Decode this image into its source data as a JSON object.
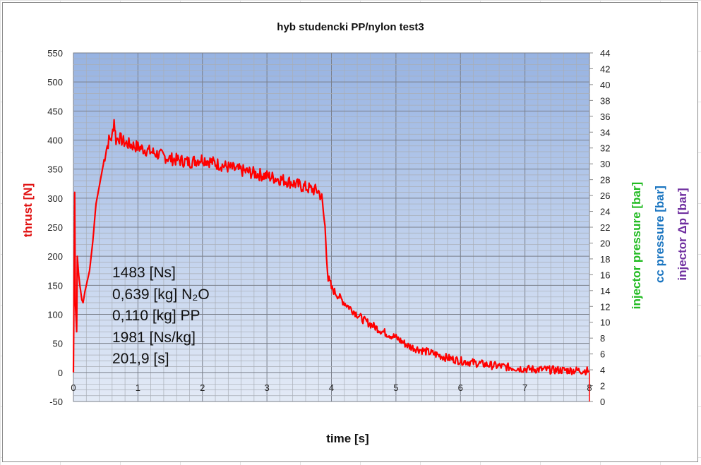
{
  "chart_data": {
    "type": "line",
    "title": "hyb studencki  PP/nylon  test3",
    "xlabel": "time [s]",
    "ylabel": "thrust  [N]",
    "y2labels": [
      "injector pressure [bar]",
      "cc pressure [bar]",
      "injector Δp [bar]"
    ],
    "y2label_colors": [
      "#22bb22",
      "#1a75c0",
      "#7030a0"
    ],
    "xlim": [
      0,
      8
    ],
    "ylim": [
      -50,
      550
    ],
    "y2lim": [
      0,
      44
    ],
    "x_ticks": [
      "0",
      "1",
      "2",
      "3",
      "4",
      "5",
      "6",
      "7",
      "8"
    ],
    "y_ticks": [
      "550",
      "500",
      "450",
      "400",
      "350",
      "300",
      "250",
      "200",
      "150",
      "100",
      "50",
      "0",
      "-50"
    ],
    "y2_ticks": [
      "44",
      "42",
      "40",
      "38",
      "36",
      "34",
      "32",
      "30",
      "28",
      "26",
      "24",
      "22",
      "20",
      "18",
      "16",
      "14",
      "12",
      "10",
      "8",
      "6",
      "4",
      "2",
      "0"
    ],
    "grid": true,
    "series": [
      {
        "name": "thrust [N]",
        "color": "#ff0000",
        "x": [
          0,
          0.02,
          0.03,
          0.05,
          0.06,
          0.08,
          0.1,
          0.13,
          0.15,
          0.18,
          0.2,
          0.25,
          0.3,
          0.35,
          0.4,
          0.45,
          0.5,
          0.55,
          0.6,
          0.63,
          0.66,
          0.7,
          0.8,
          1.0,
          1.2,
          1.5,
          1.8,
          2.0,
          2.2,
          2.5,
          2.8,
          3.0,
          3.3,
          3.5,
          3.7,
          3.8,
          3.85,
          3.9,
          3.95,
          4.0,
          4.2,
          4.5,
          4.8,
          5.0,
          5.2,
          5.5,
          5.8,
          6.0,
          6.5,
          7.0,
          7.5,
          8.0
        ],
        "values": [
          0,
          310,
          120,
          70,
          200,
          170,
          150,
          125,
          120,
          140,
          150,
          175,
          225,
          290,
          320,
          350,
          380,
          400,
          405,
          435,
          400,
          405,
          395,
          388,
          380,
          368,
          362,
          368,
          360,
          350,
          343,
          338,
          330,
          322,
          315,
          312,
          300,
          250,
          160,
          145,
          120,
          90,
          70,
          60,
          45,
          35,
          25,
          20,
          12,
          6,
          4,
          3
        ]
      }
    ],
    "annotations": [
      "1483  [Ns]",
      "0,639 [kg] N₂O",
      "0,110 [kg] PP",
      "1981  [Ns/kg]",
      "201,9 [s]"
    ]
  },
  "labels": {
    "title": "hyb studencki  PP/nylon  test3",
    "xlabel": "time [s]",
    "ylabel": "thrust  [N]",
    "y2_injector": "injector pressure [bar]",
    "y2_cc": "cc pressure [bar]",
    "y2_dp": "injector Δp [bar]",
    "annot_impulse": "1483  [Ns]",
    "annot_n2o": "0,639 [kg] N₂O",
    "annot_pp": "0,110 [kg] PP",
    "annot_isp_ns": "1981  [Ns/kg]",
    "annot_isp_s": "201,9 [s]"
  }
}
